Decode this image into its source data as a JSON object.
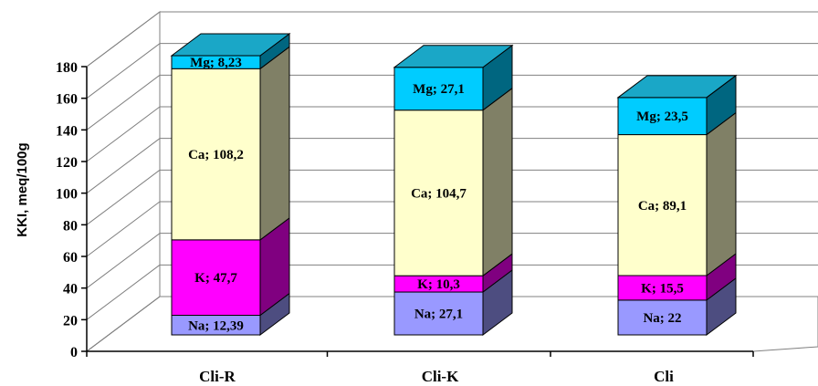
{
  "chart_data": {
    "type": "bar",
    "stacked": true,
    "three_d": true,
    "ylabel": "KKI, meq/100g",
    "ylim": [
      0,
      180
    ],
    "yticks": [
      0,
      20,
      40,
      60,
      80,
      100,
      120,
      140,
      160,
      180
    ],
    "categories": [
      "Cli-R",
      "Cli-K",
      "Cli"
    ],
    "series": [
      {
        "name": "Na",
        "values": [
          12.39,
          27.1,
          22
        ],
        "labels": [
          "Na; 12,39",
          "Na; 27,1",
          "Na; 22"
        ],
        "color": "#9999ff",
        "side": "#4d4d80",
        "top": "#bdbdff"
      },
      {
        "name": "K",
        "values": [
          47.7,
          10.3,
          15.5
        ],
        "labels": [
          "K; 47,7",
          "K; 10,3",
          "K; 15,5"
        ],
        "color": "#ff00ff",
        "side": "#800080",
        "top": "#ff66ff"
      },
      {
        "name": "Ca",
        "values": [
          108.2,
          104.7,
          89.1
        ],
        "labels": [
          "Ca; 108,2",
          "Ca; 104,7",
          "Ca; 89,1"
        ],
        "color": "#ffffcc",
        "side": "#808066",
        "top": "#ffffe6"
      },
      {
        "name": "Mg",
        "values": [
          8.23,
          27.1,
          23.5
        ],
        "labels": [
          "Mg; 8,23",
          "Mg; 27,1",
          "Mg; 23,5"
        ],
        "color": "#00ccff",
        "side": "#006680",
        "top": "#1aa7c7"
      }
    ],
    "grid": true,
    "legend": "none"
  }
}
